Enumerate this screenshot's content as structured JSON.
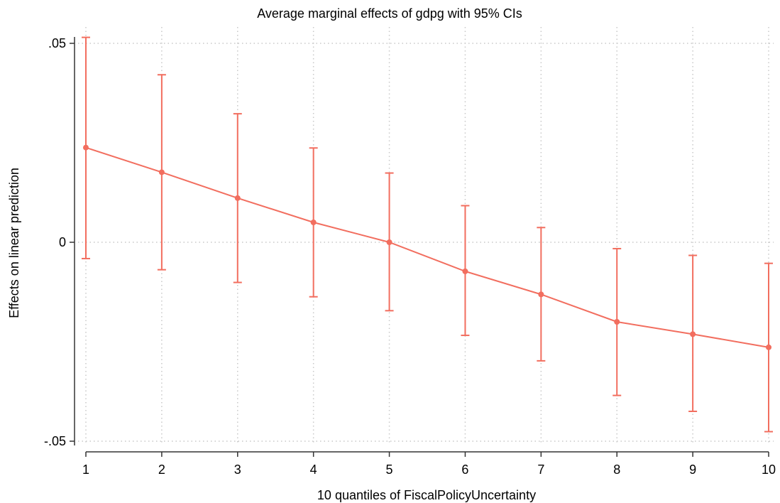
{
  "chart_data": {
    "type": "line",
    "title": "Average marginal effects of gdpg with 95% CIs",
    "xlabel": "10 quantiles of FiscalPolicyUncertainty",
    "ylabel": "Effects on linear prediction",
    "x": [
      1,
      2,
      3,
      4,
      5,
      6,
      7,
      8,
      9,
      10
    ],
    "xticks": [
      1,
      2,
      3,
      4,
      5,
      6,
      7,
      8,
      9,
      10
    ],
    "xtick_labels": [
      "1",
      "2",
      "3",
      "4",
      "5",
      "6",
      "7",
      "8",
      "9",
      "10"
    ],
    "yticks": [
      -0.05,
      0,
      0.05
    ],
    "ytick_labels": [
      "-.05",
      "0",
      ".05"
    ],
    "ylim": [
      -0.05,
      0.05
    ],
    "xlim": [
      1,
      10
    ],
    "grid": true,
    "legend": "none",
    "series": [
      {
        "values": [
          0.0238,
          0.0176,
          0.0111,
          0.005,
          0.0,
          -0.0073,
          -0.0131,
          -0.02,
          -0.0231,
          -0.0264
        ],
        "ci_lower": [
          -0.0041,
          -0.0069,
          -0.0101,
          -0.0137,
          -0.0172,
          -0.0234,
          -0.0298,
          -0.0385,
          -0.0425,
          -0.0476
        ],
        "ci_upper": [
          0.0515,
          0.0421,
          0.0323,
          0.0237,
          0.0174,
          0.0092,
          0.0037,
          -0.0016,
          -0.0033,
          -0.0053
        ],
        "color": "#f26e5f"
      }
    ]
  }
}
